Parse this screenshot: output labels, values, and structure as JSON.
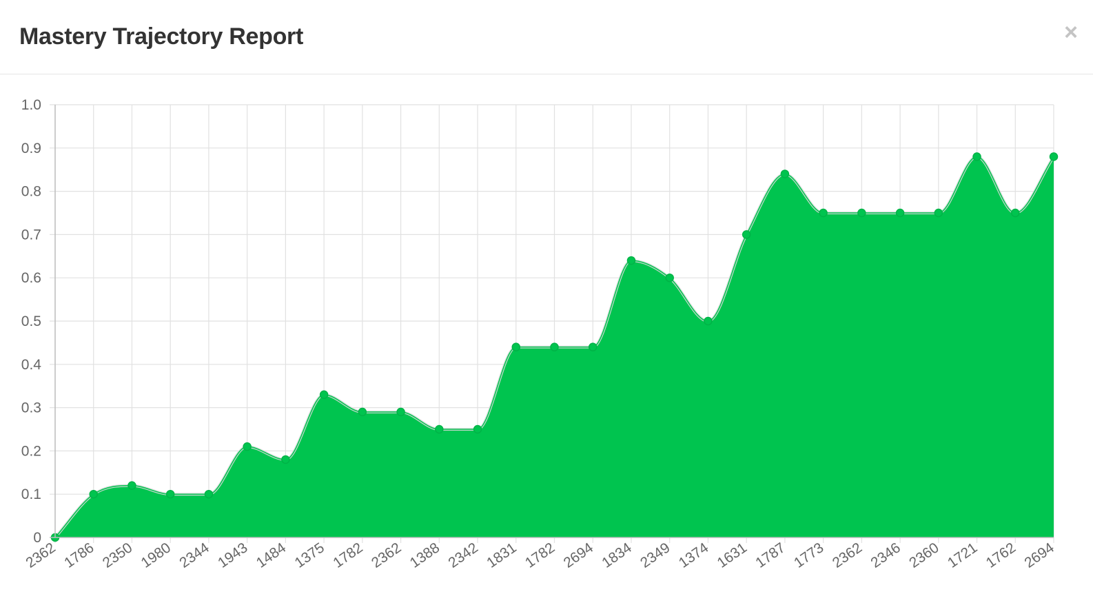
{
  "modal": {
    "title": "Mastery Trajectory Report",
    "close_label": "×"
  },
  "chart_data": {
    "type": "area",
    "title": "",
    "xlabel": "",
    "ylabel": "",
    "ylim": [
      0,
      1.0
    ],
    "y_ticks": [
      "0",
      "0.1",
      "0.2",
      "0.3",
      "0.4",
      "0.5",
      "0.6",
      "0.7",
      "0.8",
      "0.9",
      "1.0"
    ],
    "grid": true,
    "legend": "none",
    "fill_color": "#00c44f",
    "line_color": "#00b347",
    "categories": [
      "2362",
      "1786",
      "2350",
      "1980",
      "2344",
      "1943",
      "1484",
      "1375",
      "1782",
      "2362",
      "1388",
      "2342",
      "1831",
      "1782",
      "2694",
      "1834",
      "2349",
      "1374",
      "1631",
      "1787",
      "1773",
      "2362",
      "2346",
      "2360",
      "1721",
      "1762",
      "2694"
    ],
    "series": [
      {
        "values": [
          0,
          0.1,
          0.12,
          0.1,
          0.1,
          0.21,
          0.18,
          0.33,
          0.29,
          0.29,
          0.25,
          0.25,
          0.44,
          0.44,
          0.44,
          0.64,
          0.6,
          0.5,
          0.7,
          0.84,
          0.75,
          0.75,
          0.75,
          0.75,
          0.88,
          0.75,
          0.88
        ]
      }
    ]
  }
}
